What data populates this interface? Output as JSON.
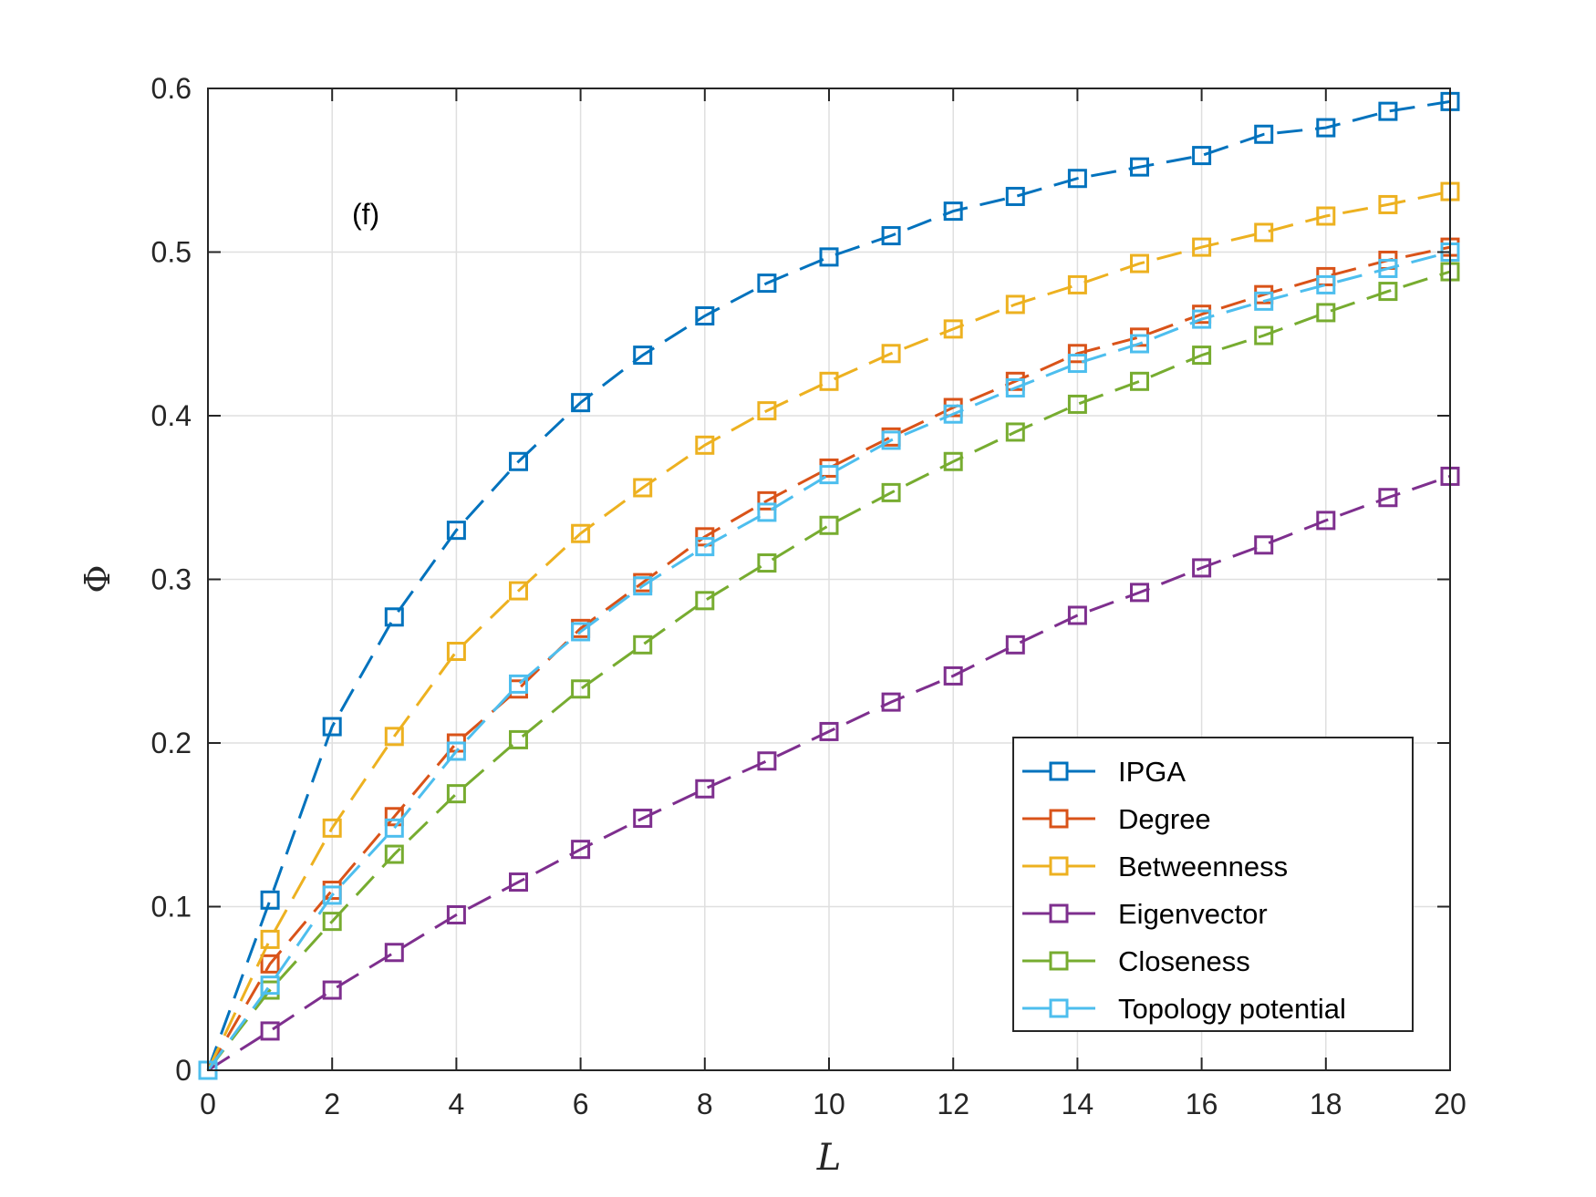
{
  "chart_data": {
    "type": "line",
    "title": "",
    "annotation": "(f)",
    "xlabel": "L",
    "ylabel": "Φ",
    "xlim": [
      0,
      20
    ],
    "ylim": [
      0,
      0.6
    ],
    "xticks": [
      0,
      2,
      4,
      6,
      8,
      10,
      12,
      14,
      16,
      18,
      20
    ],
    "xtick_labels": [
      "0",
      "2",
      "4",
      "6",
      "8",
      "10",
      "12",
      "14",
      "16",
      "18",
      "20"
    ],
    "yticks": [
      0,
      0.1,
      0.2,
      0.3,
      0.4,
      0.5,
      0.6
    ],
    "ytick_labels": [
      "0",
      "0.1",
      "0.2",
      "0.3",
      "0.4",
      "0.5",
      "0.6"
    ],
    "grid": true,
    "legend_position": "bottom-right",
    "x": [
      0,
      1,
      2,
      3,
      4,
      5,
      6,
      7,
      8,
      9,
      10,
      11,
      12,
      13,
      14,
      15,
      16,
      17,
      18,
      19,
      20
    ],
    "series": [
      {
        "name": "IPGA",
        "color": "#0072BD",
        "line_style": "dashed",
        "marker": "square",
        "values": [
          0,
          0.104,
          0.21,
          0.277,
          0.33,
          0.372,
          0.408,
          0.437,
          0.461,
          0.481,
          0.497,
          0.51,
          0.525,
          0.534,
          0.545,
          0.552,
          0.559,
          0.572,
          0.576,
          0.586,
          0.592
        ]
      },
      {
        "name": "Degree",
        "color": "#D95319",
        "line_style": "dashed",
        "marker": "square",
        "values": [
          0,
          0.065,
          0.11,
          0.155,
          0.2,
          0.233,
          0.27,
          0.298,
          0.326,
          0.348,
          0.368,
          0.387,
          0.405,
          0.421,
          0.438,
          0.448,
          0.462,
          0.474,
          0.485,
          0.495,
          0.503
        ]
      },
      {
        "name": "Betweenness",
        "color": "#EDB120",
        "line_style": "dashed",
        "marker": "square",
        "values": [
          0,
          0.08,
          0.148,
          0.204,
          0.256,
          0.293,
          0.328,
          0.356,
          0.382,
          0.403,
          0.421,
          0.438,
          0.453,
          0.468,
          0.48,
          0.493,
          0.503,
          0.512,
          0.522,
          0.529,
          0.537
        ]
      },
      {
        "name": "Eigenvector",
        "color": "#7E2F8E",
        "line_style": "dashed",
        "marker": "square",
        "values": [
          0,
          0.024,
          0.049,
          0.072,
          0.095,
          0.115,
          0.135,
          0.154,
          0.172,
          0.189,
          0.207,
          0.225,
          0.241,
          0.26,
          0.278,
          0.292,
          0.307,
          0.321,
          0.336,
          0.35,
          0.363
        ]
      },
      {
        "name": "Closeness",
        "color": "#77AC30",
        "line_style": "dashed",
        "marker": "square",
        "values": [
          0,
          0.049,
          0.091,
          0.132,
          0.169,
          0.202,
          0.233,
          0.26,
          0.287,
          0.31,
          0.333,
          0.353,
          0.372,
          0.39,
          0.407,
          0.421,
          0.437,
          0.449,
          0.463,
          0.476,
          0.488
        ]
      },
      {
        "name": "Topology potential",
        "color": "#4DBEEE",
        "line_style": "dashed",
        "marker": "square",
        "values": [
          0,
          0.052,
          0.107,
          0.148,
          0.195,
          0.236,
          0.268,
          0.296,
          0.32,
          0.341,
          0.364,
          0.385,
          0.401,
          0.417,
          0.432,
          0.444,
          0.459,
          0.47,
          0.48,
          0.49,
          0.5
        ]
      }
    ]
  }
}
